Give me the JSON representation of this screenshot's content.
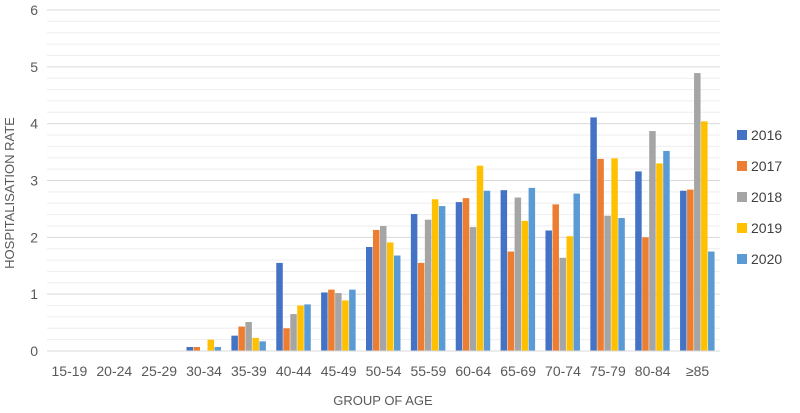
{
  "chart_data": {
    "type": "bar",
    "title": "",
    "xlabel": "GROUP OF AGE",
    "ylabel": "HOSPITALISATION RATE",
    "ylim": [
      0,
      6
    ],
    "yticks": [
      0,
      1,
      2,
      3,
      4,
      5,
      6
    ],
    "grid": true,
    "legend_position": "right",
    "categories": [
      "15-19",
      "20-24",
      "25-29",
      "30-34",
      "35-39",
      "40-44",
      "45-49",
      "50-54",
      "55-59",
      "60-64",
      "65-69",
      "70-74",
      "75-79",
      "80-84",
      "≥85"
    ],
    "series": [
      {
        "name": "2016",
        "color": "#4472C4",
        "values": [
          0,
          0,
          0,
          0.07,
          0.27,
          1.55,
          1.03,
          1.83,
          2.41,
          2.62,
          2.83,
          2.12,
          4.11,
          3.16,
          2.82
        ]
      },
      {
        "name": "2017",
        "color": "#ED7D31",
        "values": [
          0,
          0,
          0,
          0.07,
          0.43,
          0.4,
          1.08,
          2.13,
          1.55,
          2.69,
          1.75,
          2.58,
          3.38,
          2.0,
          2.84
        ]
      },
      {
        "name": "2018",
        "color": "#A5A5A5",
        "values": [
          0,
          0,
          0,
          0,
          0.51,
          0.65,
          1.02,
          2.2,
          2.31,
          2.18,
          2.7,
          1.64,
          2.38,
          3.87,
          4.89
        ]
      },
      {
        "name": "2019",
        "color": "#FFC000",
        "values": [
          0,
          0,
          0,
          0.2,
          0.23,
          0.8,
          0.89,
          1.91,
          2.67,
          3.26,
          2.29,
          2.02,
          3.39,
          3.3,
          4.04
        ]
      },
      {
        "name": "2020",
        "color": "#5B9BD5",
        "values": [
          0,
          0,
          0,
          0.07,
          0.17,
          0.82,
          1.08,
          1.68,
          2.55,
          2.82,
          2.87,
          2.77,
          2.34,
          3.52,
          1.75
        ]
      }
    ]
  }
}
